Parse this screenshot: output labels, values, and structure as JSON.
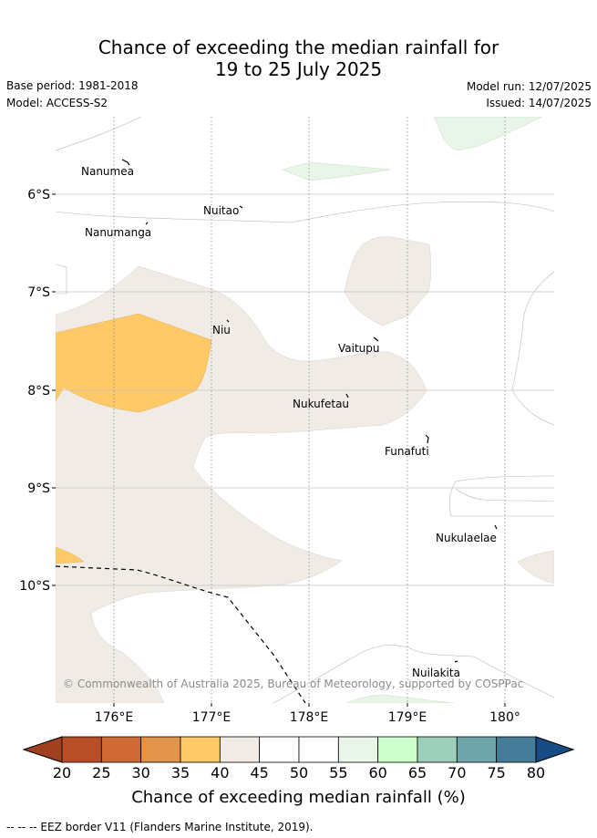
{
  "title": {
    "line1": "Chance of exceeding the median rainfall for",
    "line2": "19 to 25 July 2025"
  },
  "meta": {
    "base_period": "Base period: 1981-2018",
    "model": "Model: ACCESS-S2",
    "model_run": "Model run: 12/07/2025",
    "issued": "Issued: 14/07/2025"
  },
  "map": {
    "longitude_labels": [
      "176°E",
      "177°E",
      "178°E",
      "179°E",
      "180°"
    ],
    "latitude_labels": [
      "6°S",
      "7°S",
      "8°S",
      "9°S",
      "10°S"
    ],
    "places": {
      "nanumea": "Nanumea",
      "nuitao": "Nuitao",
      "nanumanga": "Nanumanga",
      "niu": "Niu",
      "vaitupu": "Vaitupu",
      "nukufetau": "Nukufetau",
      "funafuti": "Funafuti",
      "nukulaelae": "Nukulaelae",
      "nuilakita": "Nuilakita"
    },
    "credit": "© Commonwealth of Australia 2025, Bureau of Meteorology, supported by COSPPac"
  },
  "colorbar": {
    "ticks": [
      "20",
      "25",
      "30",
      "35",
      "40",
      "45",
      "50",
      "55",
      "60",
      "65",
      "70",
      "75",
      "80"
    ],
    "colors": [
      "#a0401f",
      "#b84e28",
      "#d06a35",
      "#e2944a",
      "#fec966",
      "#f0ebe5",
      "#ffffff",
      "#ffffff",
      "#e8f5e8",
      "#ccffcc",
      "#9ccfba",
      "#6fa5a8",
      "#457c99",
      "#164b85"
    ],
    "title": "Chance of exceeding median rainfall (%)"
  },
  "footer": {
    "eez_note": "--  --  -- EEZ border V11 (Flanders Marine Institute, 2019)."
  }
}
